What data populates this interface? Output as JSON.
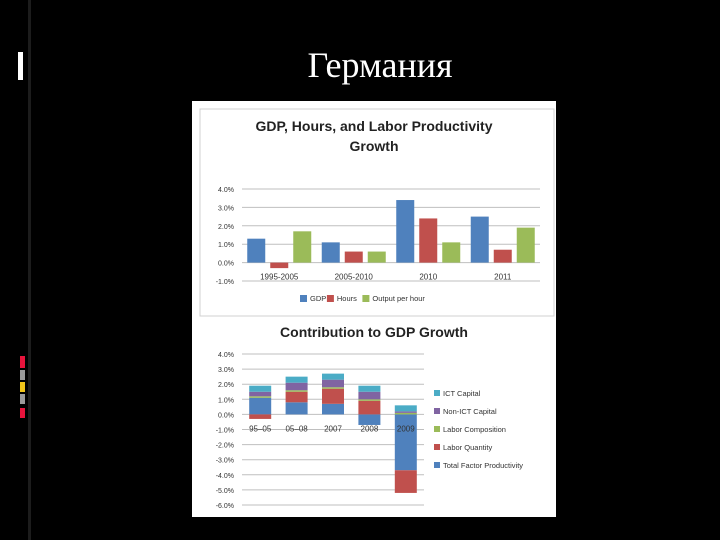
{
  "slide": {
    "title": "Германия"
  },
  "colors": {
    "blue": "#4f81bd",
    "red": "#c0504d",
    "green": "#9bbb59",
    "purple": "#8064a2",
    "cyan": "#4bacc6",
    "accent_yellow": "#f0c419",
    "accent_red": "#e8143c",
    "accent_gray": "#9a9a9a"
  },
  "chart_data": [
    {
      "type": "bar",
      "title": "GDP, Hours, and Labor Productivity Growth",
      "categories": [
        "1995-2005",
        "2005-2010",
        "2010",
        "2011"
      ],
      "series": [
        {
          "name": "GDP",
          "values": [
            1.3,
            1.1,
            3.4,
            2.5
          ]
        },
        {
          "name": "Hours",
          "values": [
            -0.3,
            0.6,
            2.4,
            0.7
          ]
        },
        {
          "name": "Output per hour",
          "values": [
            1.7,
            0.6,
            1.1,
            1.9
          ]
        }
      ],
      "ylim": [
        -1.0,
        4.0
      ],
      "yticks": [
        "4.0%",
        "3.0%",
        "2.0%",
        "1.0%",
        "0.0%",
        "-1.0%"
      ],
      "legend": "bottom",
      "grid": true
    },
    {
      "type": "bar",
      "stacked": true,
      "title": "Contribution to GDP Growth",
      "categories": [
        "95–05",
        "05–08",
        "2007",
        "2008",
        "2009"
      ],
      "series": [
        {
          "name": "ICT Capital",
          "values": [
            0.4,
            0.4,
            0.4,
            0.4,
            0.4
          ]
        },
        {
          "name": "Non-ICT Capital",
          "values": [
            0.3,
            0.5,
            0.5,
            0.5,
            0.1
          ]
        },
        {
          "name": "Labor Composition",
          "values": [
            0.1,
            0.1,
            0.1,
            0.1,
            0.1
          ]
        },
        {
          "name": "Labor Quantity",
          "values": [
            -0.3,
            0.7,
            1.0,
            0.9,
            -1.5
          ]
        },
        {
          "name": "Total Factor Productivity",
          "values": [
            1.1,
            0.8,
            0.7,
            -0.7,
            -3.7
          ]
        }
      ],
      "ylim": [
        -6.0,
        4.0
      ],
      "yticks": [
        "4.0%",
        "3.0%",
        "2.0%",
        "1.0%",
        "0.0%",
        "-1.0%",
        "-2.0%",
        "-3.0%",
        "-4.0%",
        "-5.0%",
        "-6.0%"
      ],
      "legend": "right",
      "grid": true
    }
  ]
}
